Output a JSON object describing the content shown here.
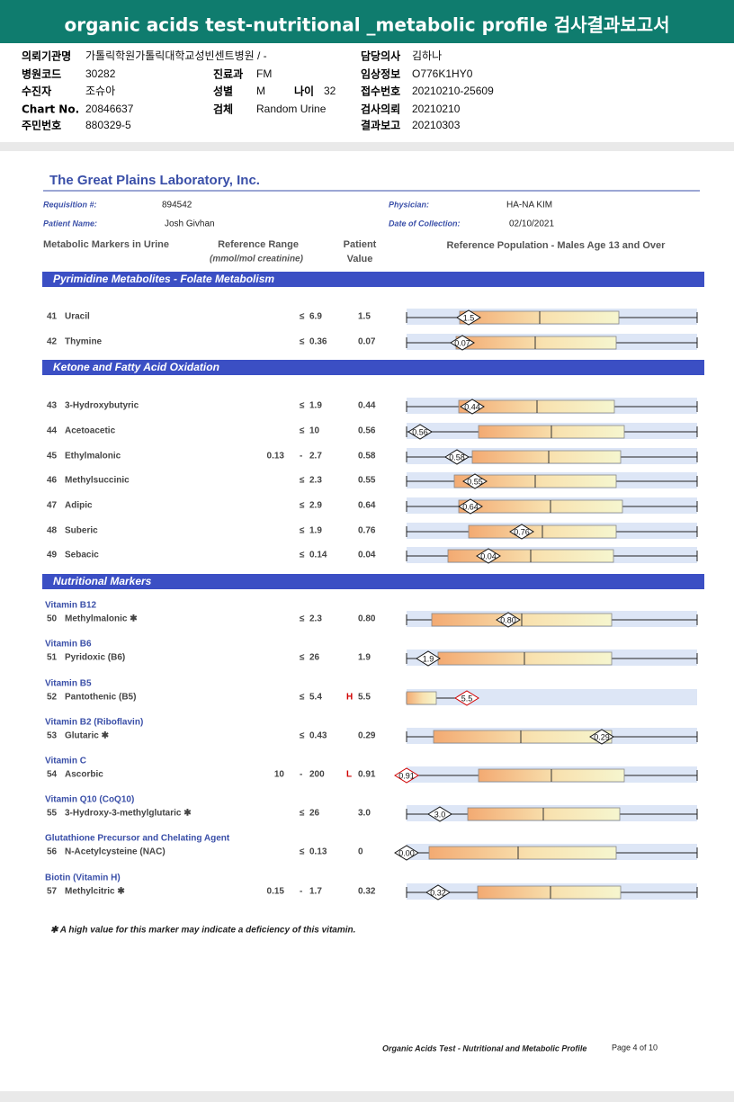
{
  "header": {
    "title": "organic acids test-nutritional _metabolic profile 검사결과보고서"
  },
  "info": {
    "left": [
      {
        "label": "의뢰기관명",
        "value": "가톨릭학원가톨릭대학교성빈센트병원 / -"
      },
      {
        "label": "병원코드",
        "value": "30282"
      },
      {
        "label": "수진자",
        "value": "조슈아"
      },
      {
        "label": "Chart No.",
        "value": "20846637"
      },
      {
        "label": "주민번호",
        "value": "880329-5"
      }
    ],
    "middle": [
      {
        "label": "진료과",
        "value": "FM"
      },
      {
        "label": "성별",
        "value": "M"
      },
      {
        "label": "검체",
        "value": "Random Urine"
      }
    ],
    "age": {
      "label": "나이",
      "value": "32"
    },
    "right": [
      {
        "label": "담당의사",
        "value": "김하나"
      },
      {
        "label": "임상정보",
        "value": "O776K1HY0"
      },
      {
        "label": "접수번호",
        "value": "20210210-25609"
      },
      {
        "label": "검사의뢰",
        "value": "20210210"
      },
      {
        "label": "결과보고",
        "value": "20210303"
      }
    ]
  },
  "report": {
    "lab": "The Great Plains Laboratory, Inc.",
    "fields": [
      {
        "label": "Requisition #:",
        "value": "894542"
      },
      {
        "label": "Physician:",
        "value": "HA-NA KIM"
      },
      {
        "label": "Patient Name:",
        "value": "Josh Givhan"
      },
      {
        "label": "Date of Collection:",
        "value": "02/10/2021"
      }
    ],
    "columns": {
      "markers": "Metabolic Markers in Urine",
      "range": "Reference Range",
      "range_unit": "(mmol/mol creatinine)",
      "patient": "Patient",
      "patient2": "Value",
      "population": "Reference Population - Males Age 13 and Over"
    },
    "sections": [
      {
        "title": "Pyrimidine Metabolites - Folate Metabolism",
        "rows": [
          {
            "num": "41",
            "name": "Uracil",
            "op": "≤",
            "high": "6.9",
            "value": "1.5"
          },
          {
            "num": "42",
            "name": "Thymine",
            "op": "≤",
            "high": "0.36",
            "value": "0.07"
          }
        ]
      },
      {
        "title": "Ketone and Fatty Acid Oxidation",
        "rows": [
          {
            "num": "43",
            "name": "3-Hydroxybutyric",
            "op": "≤",
            "high": "1.9",
            "value": "0.44"
          },
          {
            "num": "44",
            "name": "Acetoacetic",
            "op": "≤",
            "high": "10",
            "value": "0.56"
          },
          {
            "num": "45",
            "name": "Ethylmalonic",
            "low": "0.13",
            "op": "-",
            "high": "2.7",
            "value": "0.58"
          },
          {
            "num": "46",
            "name": "Methylsuccinic",
            "op": "≤",
            "high": "2.3",
            "value": "0.55"
          },
          {
            "num": "47",
            "name": "Adipic",
            "op": "≤",
            "high": "2.9",
            "value": "0.64"
          },
          {
            "num": "48",
            "name": "Suberic",
            "op": "≤",
            "high": "1.9",
            "value": "0.76"
          },
          {
            "num": "49",
            "name": "Sebacic",
            "op": "≤",
            "high": "0.14",
            "value": "0.04"
          }
        ]
      },
      {
        "title": "Nutritional Markers",
        "rows": [
          {
            "group": "Vitamin B12",
            "num": "50",
            "name": "Methylmalonic ✱",
            "op": "≤",
            "high": "2.3",
            "value": "0.80"
          },
          {
            "group": "Vitamin B6",
            "num": "51",
            "name": "Pyridoxic (B6)",
            "op": "≤",
            "high": "26",
            "value": "1.9"
          },
          {
            "group": "Vitamin B5",
            "num": "52",
            "name": "Pantothenic (B5)",
            "op": "≤",
            "high": "5.4",
            "flag": "H",
            "value": "5.5"
          },
          {
            "group": "Vitamin B2 (Riboflavin)",
            "num": "53",
            "name": "Glutaric ✱",
            "op": "≤",
            "high": "0.43",
            "value": "0.29"
          },
          {
            "group": "Vitamin C",
            "num": "54",
            "name": "Ascorbic",
            "low": "10",
            "op": "-",
            "high": "200",
            "flag": "L",
            "value": "0.91"
          },
          {
            "group": "Vitamin Q10 (CoQ10)",
            "num": "55",
            "name": "3-Hydroxy-3-methylglutaric ✱",
            "op": "≤",
            "high": "26",
            "value": "3.0"
          },
          {
            "group": "Glutathione Precursor and Chelating Agent",
            "num": "56",
            "name": "N-Acetylcysteine (NAC)",
            "op": "≤",
            "high": "0.13",
            "value": "0",
            "marker": "0.00"
          },
          {
            "group": "Biotin (Vitamin H)",
            "num": "57",
            "name": "Methylcitric ✱",
            "low": "0.15",
            "op": "-",
            "high": "1.7",
            "value": "0.32"
          }
        ]
      }
    ],
    "footnote": "✱  A high value for this marker may indicate a deficiency of this vitamin.",
    "footer": {
      "doc": "Organic Acids Test - Nutritional and Metabolic Profile",
      "page": "Page 4 of 10"
    }
  }
}
